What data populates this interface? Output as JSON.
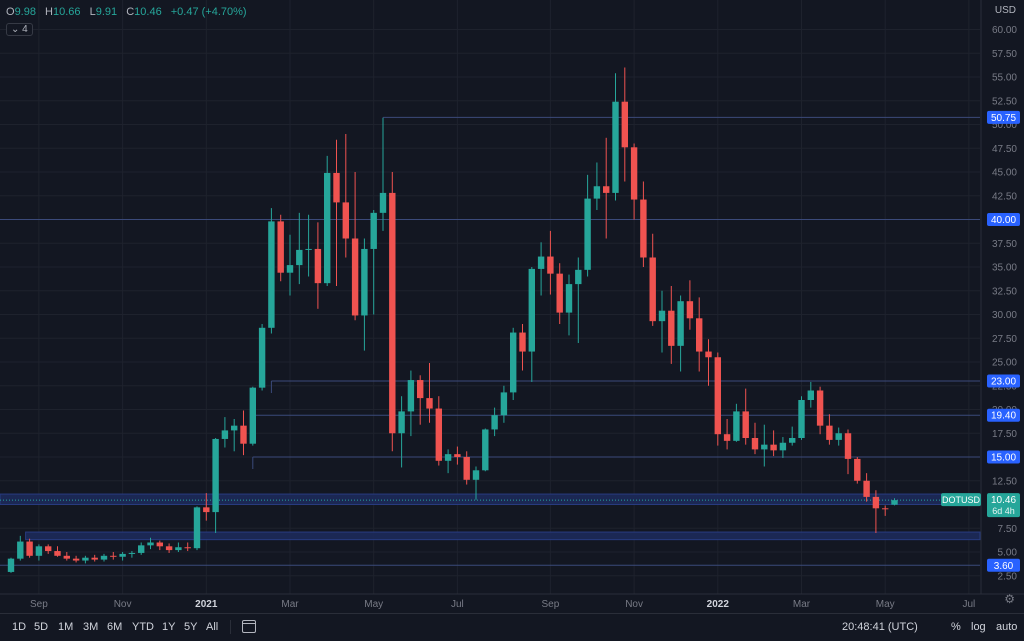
{
  "header": {
    "o_label": "O",
    "open": "9.98",
    "h_label": "H",
    "high": "10.66",
    "l_label": "L",
    "low": "9.91",
    "c_label": "C",
    "close": "10.46",
    "change": "+0.47 (+4.70%)",
    "indicator_badge": "⌄ 4"
  },
  "currency": "USD",
  "bottom_bar": {
    "timeframes": [
      "1D",
      "5D",
      "1M",
      "3M",
      "6M",
      "YTD",
      "1Y",
      "5Y",
      "All"
    ],
    "clock": "20:48:41 (UTC)",
    "percent": "%",
    "log": "log",
    "auto": "auto"
  },
  "colors": {
    "up": "#26a69a",
    "down": "#ef5350",
    "level": "#2962ff",
    "bg": "#131722",
    "grid": "#1e222d"
  },
  "chart_data": {
    "type": "candlestick",
    "symbol": "DOTUSD",
    "interval": "1W",
    "ylim": [
      1.0,
      61.0
    ],
    "price_scale_ticks": [
      2.5,
      3.6,
      5.0,
      7.5,
      10.46,
      12.5,
      15.0,
      17.5,
      19.4,
      20.0,
      22.5,
      23.0,
      25.0,
      27.5,
      30.0,
      32.5,
      35.0,
      37.5,
      40.0,
      42.5,
      45.0,
      47.5,
      50.0,
      50.75,
      52.5,
      55.0,
      57.5,
      60.0
    ],
    "price_scale_labels": [
      "2.50",
      "3.60",
      "5.00",
      "7.50",
      "10.46",
      "12.50",
      "15.00",
      "17.50",
      "19.40",
      "20.00",
      "22.50",
      "23.00",
      "25.00",
      "27.50",
      "30.00",
      "32.50",
      "35.00",
      "37.50",
      "40.00",
      "42.50",
      "45.00",
      "47.50",
      "50.00",
      "50.75",
      "52.50",
      "55.00",
      "57.50",
      "60.00"
    ],
    "time_labels": [
      {
        "label": "Sep",
        "index": 3
      },
      {
        "label": "Nov",
        "index": 12
      },
      {
        "label": "2021",
        "index": 21
      },
      {
        "label": "Mar",
        "index": 30
      },
      {
        "label": "May",
        "index": 39
      },
      {
        "label": "Jul",
        "index": 48
      },
      {
        "label": "Sep",
        "index": 58
      },
      {
        "label": "Nov",
        "index": 67
      },
      {
        "label": "2022",
        "index": 76
      },
      {
        "label": "Mar",
        "index": 85
      },
      {
        "label": "May",
        "index": 94
      },
      {
        "label": "Jul",
        "index": 103
      }
    ],
    "horizontal_levels": [
      {
        "price": 50.75,
        "label": "50.75",
        "start_index": 40
      },
      {
        "price": 40.0,
        "label": "40.00",
        "start_index": 0
      },
      {
        "price": 23.0,
        "label": "23.00",
        "start_index": 28
      },
      {
        "price": 19.4,
        "label": "19.40",
        "start_index": 26
      },
      {
        "price": 15.0,
        "label": "15.00",
        "start_index": 26
      },
      {
        "price": 3.6,
        "label": "3.60",
        "start_index": 0
      }
    ],
    "zones": [
      {
        "low": 10.0,
        "high": 11.1,
        "start_index": 0
      },
      {
        "low": 6.3,
        "high": 7.1,
        "start_index": 2
      }
    ],
    "last_price": {
      "label": "DOTUSD",
      "price": "10.46",
      "countdown": "6d 4h"
    },
    "candles": [
      {
        "o": 2.9,
        "h": 4.4,
        "l": 2.8,
        "c": 4.3
      },
      {
        "o": 4.3,
        "h": 6.7,
        "l": 4.1,
        "c": 6.1
      },
      {
        "o": 6.1,
        "h": 6.4,
        "l": 4.4,
        "c": 4.6
      },
      {
        "o": 4.6,
        "h": 5.8,
        "l": 4.1,
        "c": 5.6
      },
      {
        "o": 5.6,
        "h": 5.8,
        "l": 4.8,
        "c": 5.1
      },
      {
        "o": 5.1,
        "h": 5.6,
        "l": 4.5,
        "c": 4.6
      },
      {
        "o": 4.6,
        "h": 5.0,
        "l": 4.1,
        "c": 4.3
      },
      {
        "o": 4.3,
        "h": 4.6,
        "l": 3.9,
        "c": 4.1
      },
      {
        "o": 4.1,
        "h": 4.6,
        "l": 3.8,
        "c": 4.4
      },
      {
        "o": 4.4,
        "h": 4.7,
        "l": 4.0,
        "c": 4.2
      },
      {
        "o": 4.2,
        "h": 4.8,
        "l": 4.0,
        "c": 4.6
      },
      {
        "o": 4.6,
        "h": 5.0,
        "l": 4.2,
        "c": 4.5
      },
      {
        "o": 4.5,
        "h": 5.0,
        "l": 4.1,
        "c": 4.8
      },
      {
        "o": 4.8,
        "h": 5.1,
        "l": 4.4,
        "c": 4.9
      },
      {
        "o": 4.9,
        "h": 6.0,
        "l": 4.7,
        "c": 5.7
      },
      {
        "o": 5.7,
        "h": 6.5,
        "l": 5.3,
        "c": 6.0
      },
      {
        "o": 6.0,
        "h": 6.2,
        "l": 5.2,
        "c": 5.6
      },
      {
        "o": 5.6,
        "h": 5.9,
        "l": 4.9,
        "c": 5.2
      },
      {
        "o": 5.2,
        "h": 6.0,
        "l": 5.0,
        "c": 5.5
      },
      {
        "o": 5.5,
        "h": 6.0,
        "l": 5.1,
        "c": 5.4
      },
      {
        "o": 5.4,
        "h": 9.8,
        "l": 5.2,
        "c": 9.7
      },
      {
        "o": 9.7,
        "h": 11.2,
        "l": 8.3,
        "c": 9.2
      },
      {
        "o": 9.2,
        "h": 17.0,
        "l": 7.0,
        "c": 16.9
      },
      {
        "o": 16.9,
        "h": 19.2,
        "l": 16.0,
        "c": 17.8
      },
      {
        "o": 17.8,
        "h": 19.0,
        "l": 15.6,
        "c": 18.3
      },
      {
        "o": 18.3,
        "h": 19.9,
        "l": 15.2,
        "c": 16.4
      },
      {
        "o": 16.4,
        "h": 22.4,
        "l": 16.2,
        "c": 22.3
      },
      {
        "o": 22.3,
        "h": 29.0,
        "l": 22.0,
        "c": 28.6
      },
      {
        "o": 28.6,
        "h": 41.2,
        "l": 28.0,
        "c": 39.8
      },
      {
        "o": 39.8,
        "h": 40.5,
        "l": 33.5,
        "c": 34.4
      },
      {
        "o": 34.4,
        "h": 38.4,
        "l": 32.0,
        "c": 35.2
      },
      {
        "o": 35.2,
        "h": 40.7,
        "l": 33.2,
        "c": 36.8
      },
      {
        "o": 36.8,
        "h": 40.5,
        "l": 34.0,
        "c": 36.9
      },
      {
        "o": 36.9,
        "h": 39.7,
        "l": 30.6,
        "c": 33.3
      },
      {
        "o": 33.3,
        "h": 46.7,
        "l": 33.0,
        "c": 44.9
      },
      {
        "o": 44.9,
        "h": 48.4,
        "l": 33.0,
        "c": 41.8
      },
      {
        "o": 41.8,
        "h": 49.0,
        "l": 36.0,
        "c": 38.0
      },
      {
        "o": 38.0,
        "h": 45.0,
        "l": 29.4,
        "c": 29.9
      },
      {
        "o": 29.9,
        "h": 38.0,
        "l": 26.2,
        "c": 36.9
      },
      {
        "o": 36.9,
        "h": 41.0,
        "l": 30.0,
        "c": 40.7
      },
      {
        "o": 40.7,
        "h": 50.7,
        "l": 38.8,
        "c": 42.8
      },
      {
        "o": 42.8,
        "h": 45.0,
        "l": 15.6,
        "c": 17.5
      },
      {
        "o": 17.5,
        "h": 21.4,
        "l": 13.9,
        "c": 19.8
      },
      {
        "o": 19.8,
        "h": 24.1,
        "l": 17.2,
        "c": 23.1
      },
      {
        "o": 23.1,
        "h": 23.6,
        "l": 18.4,
        "c": 21.2
      },
      {
        "o": 21.2,
        "h": 24.9,
        "l": 18.6,
        "c": 20.1
      },
      {
        "o": 20.1,
        "h": 21.4,
        "l": 14.1,
        "c": 14.6
      },
      {
        "o": 14.6,
        "h": 15.8,
        "l": 13.3,
        "c": 15.3
      },
      {
        "o": 15.3,
        "h": 16.1,
        "l": 14.2,
        "c": 15.0
      },
      {
        "o": 15.0,
        "h": 15.6,
        "l": 12.1,
        "c": 12.6
      },
      {
        "o": 12.6,
        "h": 14.0,
        "l": 10.5,
        "c": 13.6
      },
      {
        "o": 13.6,
        "h": 18.0,
        "l": 13.5,
        "c": 17.9
      },
      {
        "o": 17.9,
        "h": 20.2,
        "l": 17.2,
        "c": 19.4
      },
      {
        "o": 19.4,
        "h": 22.5,
        "l": 18.6,
        "c": 21.8
      },
      {
        "o": 21.8,
        "h": 28.6,
        "l": 21.0,
        "c": 28.1
      },
      {
        "o": 28.1,
        "h": 29.0,
        "l": 24.1,
        "c": 26.1
      },
      {
        "o": 26.1,
        "h": 35.0,
        "l": 22.9,
        "c": 34.8
      },
      {
        "o": 34.8,
        "h": 37.6,
        "l": 32.0,
        "c": 36.1
      },
      {
        "o": 36.1,
        "h": 38.8,
        "l": 32.1,
        "c": 34.3
      },
      {
        "o": 34.3,
        "h": 35.4,
        "l": 29.0,
        "c": 30.2
      },
      {
        "o": 30.2,
        "h": 34.2,
        "l": 27.8,
        "c": 33.2
      },
      {
        "o": 33.2,
        "h": 36.0,
        "l": 27.0,
        "c": 34.7
      },
      {
        "o": 34.7,
        "h": 44.7,
        "l": 34.0,
        "c": 42.2
      },
      {
        "o": 42.2,
        "h": 46.0,
        "l": 41.0,
        "c": 43.5
      },
      {
        "o": 43.5,
        "h": 48.6,
        "l": 38.0,
        "c": 42.8
      },
      {
        "o": 42.8,
        "h": 55.4,
        "l": 42.0,
        "c": 52.4
      },
      {
        "o": 52.4,
        "h": 56.0,
        "l": 44.0,
        "c": 47.6
      },
      {
        "o": 47.6,
        "h": 48.0,
        "l": 40.0,
        "c": 42.1
      },
      {
        "o": 42.1,
        "h": 44.0,
        "l": 35.0,
        "c": 36.0
      },
      {
        "o": 36.0,
        "h": 38.5,
        "l": 28.8,
        "c": 29.3
      },
      {
        "o": 29.3,
        "h": 32.5,
        "l": 26.0,
        "c": 30.4
      },
      {
        "o": 30.4,
        "h": 33.0,
        "l": 24.8,
        "c": 26.7
      },
      {
        "o": 26.7,
        "h": 32.0,
        "l": 24.0,
        "c": 31.4
      },
      {
        "o": 31.4,
        "h": 33.6,
        "l": 28.4,
        "c": 29.6
      },
      {
        "o": 29.6,
        "h": 31.8,
        "l": 24.0,
        "c": 26.1
      },
      {
        "o": 26.1,
        "h": 27.4,
        "l": 22.5,
        "c": 25.5
      },
      {
        "o": 25.5,
        "h": 26.0,
        "l": 16.2,
        "c": 17.4
      },
      {
        "o": 17.4,
        "h": 19.0,
        "l": 15.8,
        "c": 16.7
      },
      {
        "o": 16.7,
        "h": 20.6,
        "l": 16.6,
        "c": 19.8
      },
      {
        "o": 19.8,
        "h": 22.2,
        "l": 16.3,
        "c": 17.0
      },
      {
        "o": 17.0,
        "h": 18.6,
        "l": 15.3,
        "c": 15.8
      },
      {
        "o": 15.8,
        "h": 18.4,
        "l": 14.0,
        "c": 16.3
      },
      {
        "o": 16.3,
        "h": 17.8,
        "l": 15.1,
        "c": 15.7
      },
      {
        "o": 15.7,
        "h": 17.1,
        "l": 14.9,
        "c": 16.5
      },
      {
        "o": 16.5,
        "h": 18.2,
        "l": 16.2,
        "c": 17.0
      },
      {
        "o": 17.0,
        "h": 21.4,
        "l": 16.8,
        "c": 21.0
      },
      {
        "o": 21.0,
        "h": 22.9,
        "l": 20.2,
        "c": 22.0
      },
      {
        "o": 22.0,
        "h": 22.4,
        "l": 17.4,
        "c": 18.3
      },
      {
        "o": 18.3,
        "h": 19.5,
        "l": 16.3,
        "c": 16.8
      },
      {
        "o": 16.8,
        "h": 18.1,
        "l": 16.2,
        "c": 17.5
      },
      {
        "o": 17.5,
        "h": 17.9,
        "l": 13.2,
        "c": 14.8
      },
      {
        "o": 14.8,
        "h": 15.0,
        "l": 12.2,
        "c": 12.5
      },
      {
        "o": 12.5,
        "h": 13.3,
        "l": 10.3,
        "c": 10.8
      },
      {
        "o": 10.8,
        "h": 11.5,
        "l": 7.0,
        "c": 9.6
      },
      {
        "o": 9.6,
        "h": 9.9,
        "l": 8.8,
        "c": 9.5
      },
      {
        "o": 9.98,
        "h": 10.66,
        "l": 9.91,
        "c": 10.46
      }
    ]
  }
}
